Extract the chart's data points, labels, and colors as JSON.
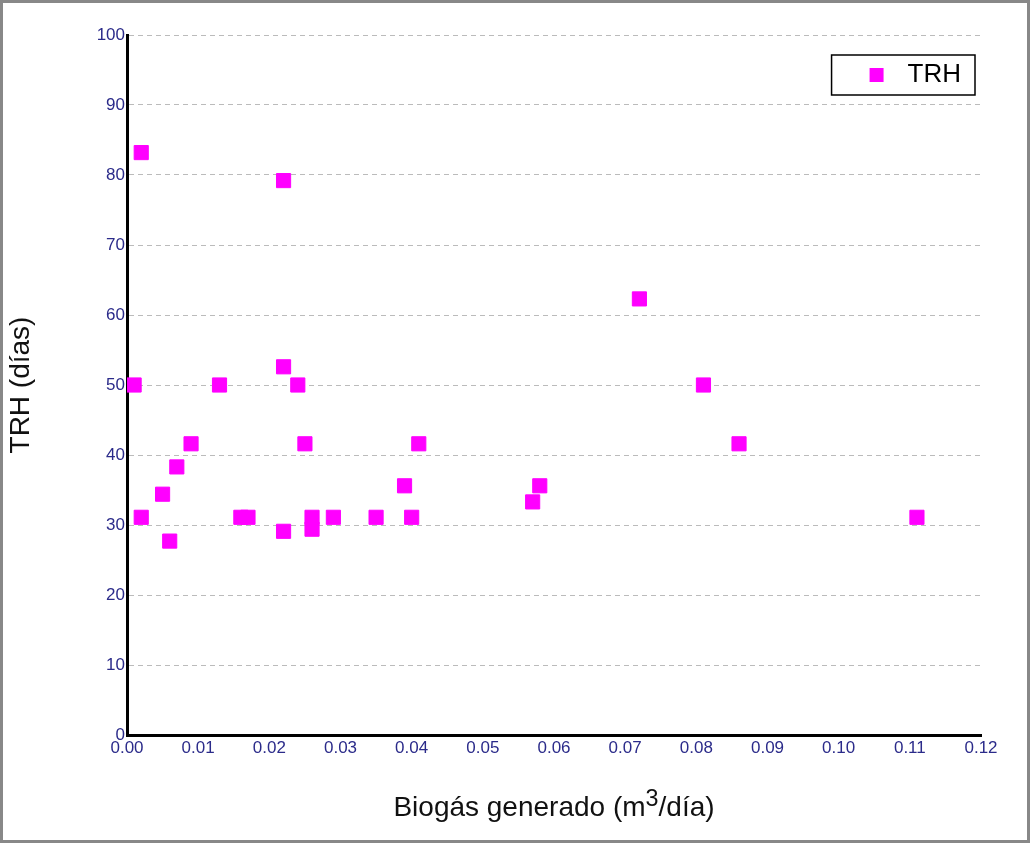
{
  "chart_data": {
    "type": "scatter",
    "xlabel": "Biogás generado (m$^{3}$/día)",
    "ylabel": "TRH (días)",
    "xlim": [
      0,
      0.12
    ],
    "xticks": [
      {
        "value": 0,
        "label": "0.00"
      },
      {
        "value": 0.01,
        "label": "0.01"
      },
      {
        "value": 0.02,
        "label": "0.02"
      },
      {
        "value": 0.03,
        "label": "0.03"
      },
      {
        "value": 0.04,
        "label": "0.04"
      },
      {
        "value": 0.05,
        "label": "0.05"
      },
      {
        "value": 0.06,
        "label": "0.06"
      },
      {
        "value": 0.07,
        "label": "0.07"
      },
      {
        "value": 0.08,
        "label": "0.08"
      },
      {
        "value": 0.09,
        "label": "0.09"
      },
      {
        "value": 0.1,
        "label": "0.10"
      },
      {
        "value": 0.11,
        "label": "0.11"
      },
      {
        "value": 0.12,
        "label": "0.12"
      }
    ],
    "ylim": [
      0,
      100
    ],
    "yticks": [
      0,
      10,
      20,
      30,
      40,
      50,
      60,
      70,
      80,
      90,
      100
    ],
    "grid": "y",
    "legend": "top right",
    "marker": "square",
    "series": [
      {
        "name": "TRH",
        "color": "#ff00ff",
        "x": [
          0.001,
          0.002,
          0.002,
          0.005,
          0.006,
          0.007,
          0.009,
          0.013,
          0.016,
          0.017,
          0.022,
          0.022,
          0.022,
          0.024,
          0.025,
          0.026,
          0.026,
          0.029,
          0.035,
          0.039,
          0.04,
          0.041,
          0.057,
          0.058,
          0.072,
          0.081,
          0.086,
          0.111
        ],
        "values": [
          50,
          83.2,
          31.1,
          34.4,
          27.7,
          38.3,
          41.6,
          50,
          31.1,
          31.1,
          79.2,
          52.6,
          29.1,
          50,
          41.6,
          31.1,
          29.4,
          31.1,
          31.1,
          35.6,
          31.1,
          41.6,
          33.3,
          35.6,
          62.3,
          50,
          41.6,
          31.1
        ]
      }
    ]
  }
}
